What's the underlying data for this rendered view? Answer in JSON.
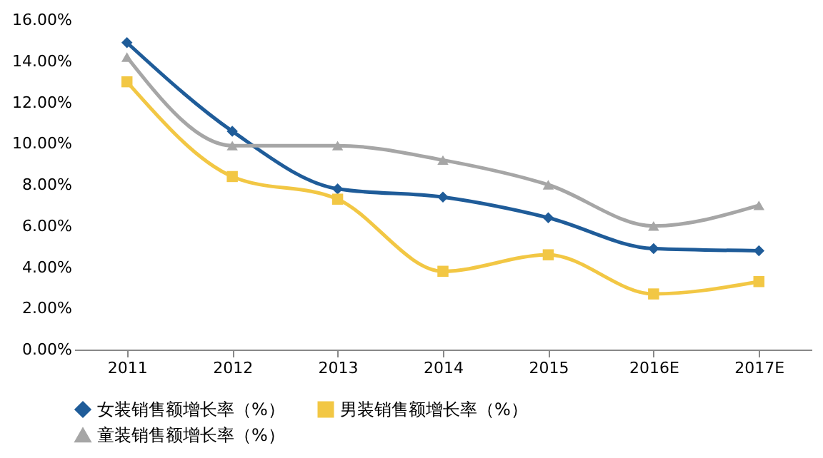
{
  "chart_data": {
    "type": "line",
    "categories": [
      "2011",
      "2012",
      "2013",
      "2014",
      "2015",
      "2016E",
      "2017E"
    ],
    "series": [
      {
        "name": "女装销售额增长率（%）",
        "color": "#1f5c99",
        "marker": "diamond",
        "values": [
          14.9,
          10.6,
          7.8,
          7.4,
          6.4,
          4.9,
          4.8
        ]
      },
      {
        "name": "男装销售额增长率（%）",
        "color": "#f2c744",
        "marker": "square",
        "values": [
          13.0,
          8.4,
          7.3,
          3.8,
          4.6,
          2.7,
          3.3
        ]
      },
      {
        "name": "童装销售额增长率（%）",
        "color": "#a6a6a6",
        "marker": "triangle",
        "values": [
          14.2,
          9.9,
          9.9,
          9.2,
          8.0,
          6.0,
          7.0
        ]
      }
    ],
    "ylim": [
      0,
      16
    ],
    "yticks": [
      {
        "value": 0,
        "label": "0.00%"
      },
      {
        "value": 2,
        "label": "2.00%"
      },
      {
        "value": 4,
        "label": "4.00%"
      },
      {
        "value": 6,
        "label": "6.00%"
      },
      {
        "value": 8,
        "label": "8.00%"
      },
      {
        "value": 10,
        "label": "10.00%"
      },
      {
        "value": 12,
        "label": "12.00%"
      },
      {
        "value": 14,
        "label": "14.00%"
      },
      {
        "value": 16,
        "label": "16.00%"
      }
    ],
    "grid": false,
    "legend": "bottom"
  }
}
